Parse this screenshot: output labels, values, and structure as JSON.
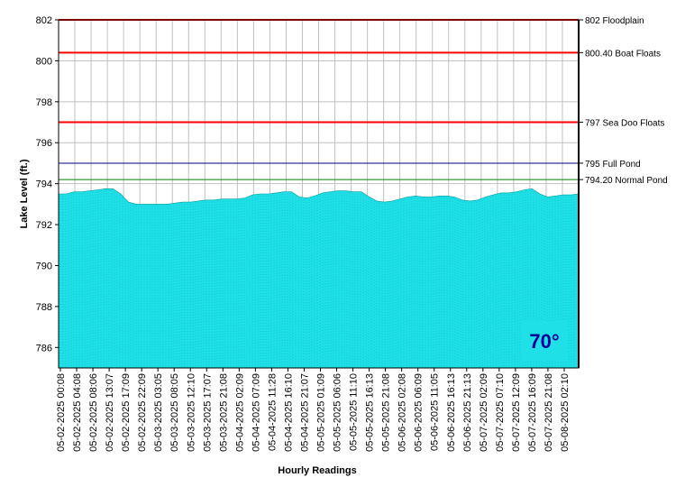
{
  "chart_data": {
    "type": "area",
    "title": "",
    "xlabel": "Hourly Readings",
    "ylabel": "Lake Level (ft.)",
    "ylim": [
      785,
      802
    ],
    "yticks": [
      786,
      788,
      790,
      792,
      794,
      796,
      798,
      800,
      802
    ],
    "grid": true,
    "x_tick_labels": [
      "05-02-2025 00:08",
      "05-02-2025 04:08",
      "05-02-2025 08:06",
      "05-02-2025 13:07",
      "05-02-2025 17:09",
      "05-02-2025 22:09",
      "05-03-2025 03:05",
      "05-03-2025 08:05",
      "05-03-2025 12:10",
      "05-03-2025 17:07",
      "05-03-2025 21:08",
      "05-04-2025 02:09",
      "05-04-2025 07:09",
      "05-04-2025 11:28",
      "05-04-2025 16:10",
      "05-04-2025 21:07",
      "05-05-2025 01:09",
      "05-05-2025 06:06",
      "05-05-2025 11:10",
      "05-05-2025 16:13",
      "05-05-2025 21:08",
      "05-06-2025 02:08",
      "05-06-2025 06:09",
      "05-06-2025 11:05",
      "05-06-2025 16:13",
      "05-06-2025 21:13",
      "05-07-2025 02:09",
      "05-07-2025 07:10",
      "05-07-2025 12:09",
      "05-07-2025 16:09",
      "05-07-2025 21:08",
      "05-08-2025 02:10"
    ],
    "series": [
      {
        "values": [
          793.5,
          793.5,
          793.6,
          793.6,
          793.65,
          793.7,
          793.75,
          793.75,
          793.5,
          793.1,
          793.0,
          793.0,
          793.0,
          793.0,
          793.0,
          793.05,
          793.1,
          793.1,
          793.15,
          793.2,
          793.2,
          793.25,
          793.25,
          793.25,
          793.3,
          793.45,
          793.5,
          793.5,
          793.55,
          793.6,
          793.6,
          793.35,
          793.3,
          793.4,
          793.55,
          793.6,
          793.65,
          793.65,
          793.6,
          793.6,
          793.35,
          793.15,
          793.1,
          793.15,
          793.25,
          793.35,
          793.4,
          793.35,
          793.35,
          793.4,
          793.4,
          793.35,
          793.2,
          793.15,
          793.2,
          793.35,
          793.45,
          793.55,
          793.55,
          793.6,
          793.7,
          793.75,
          793.5,
          793.35,
          793.4,
          793.45,
          793.45,
          793.5
        ]
      }
    ],
    "reference_lines": [
      {
        "value": 802,
        "label": "802 Floodplain",
        "color": "#ff0000"
      },
      {
        "value": 800.4,
        "label": "800.40 Boat Floats",
        "color": "#ff0000"
      },
      {
        "value": 797,
        "label": "797 Sea Doo Floats",
        "color": "#ff0000"
      },
      {
        "value": 795,
        "label": "795 Full Pond",
        "color": "#000080"
      },
      {
        "value": 794.2,
        "label": "794.20 Normal Pond",
        "color": "#008000"
      }
    ],
    "fill_color": "#1ee0e6",
    "temperature": "70°",
    "temperature_color": "#000099"
  }
}
